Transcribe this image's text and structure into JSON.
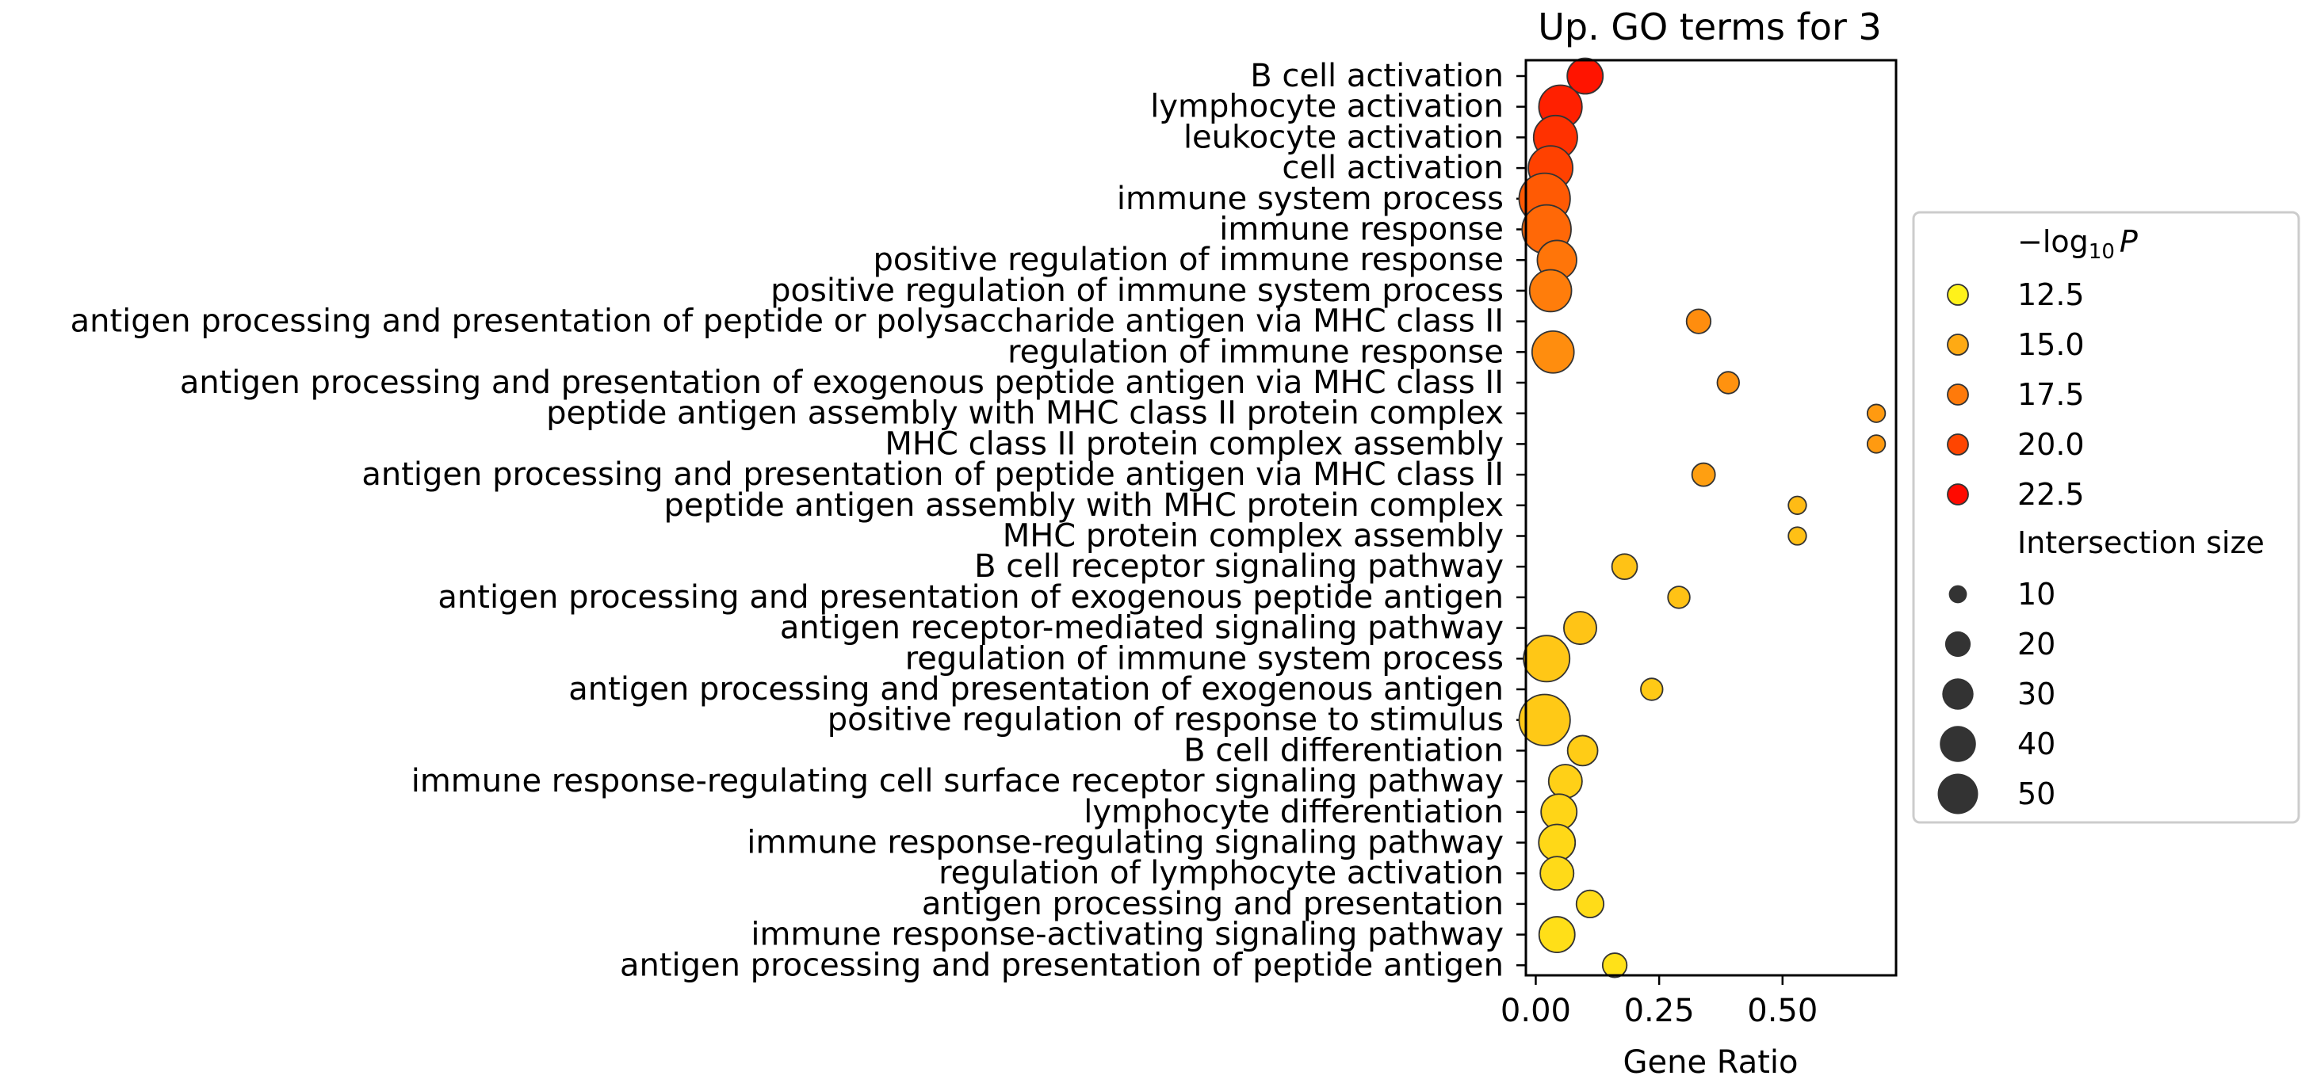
{
  "chart_data": {
    "type": "scatter",
    "title": "Up. GO terms for 3",
    "xlabel": "Gene Ratio",
    "ylabel": "",
    "xlim": [
      -0.02,
      0.73
    ],
    "xticks": [
      0.0,
      0.25,
      0.5
    ],
    "xtick_labels": [
      "0.00",
      "0.25",
      "0.50"
    ],
    "grid": false,
    "legend_position": "right",
    "color_scale": {
      "label_prefix": "−log",
      "label_sub": "10",
      "label_var": "P",
      "min": 11.5,
      "max": 23.5,
      "colors": [
        "#fff21a",
        "#ffaa13",
        "#ff7a0a",
        "#ff4500",
        "#ff0a00"
      ]
    },
    "size_legend_title": "Intersection size",
    "terms": [
      "B cell activation",
      "lymphocyte activation",
      "leukocyte activation",
      "cell activation",
      "immune system process",
      "immune response",
      "positive regulation of immune response",
      "positive regulation of immune system process",
      "antigen processing and presentation of peptide or polysaccharide antigen via MHC class II",
      "regulation of immune response",
      "antigen processing and presentation of exogenous peptide antigen via MHC class II",
      "peptide antigen assembly with MHC class II protein complex",
      "MHC class II protein complex assembly",
      "antigen processing and presentation of peptide antigen via MHC class II",
      "peptide antigen assembly with MHC protein complex",
      "MHC protein complex assembly",
      "B cell receptor signaling pathway",
      "antigen processing and presentation of exogenous peptide antigen",
      "antigen receptor-mediated signaling pathway",
      "regulation of immune system process",
      "antigen processing and presentation of exogenous antigen",
      "positive regulation of response to stimulus",
      "B cell differentiation",
      "immune response-regulating cell surface receptor signaling pathway",
      "lymphocyte differentiation",
      "immune response-regulating signaling pathway",
      "regulation of lymphocyte activation",
      "antigen processing and presentation",
      "immune response-activating signaling pathway",
      "antigen processing and presentation of peptide antigen"
    ],
    "gene_ratio": [
      0.1,
      0.05,
      0.04,
      0.03,
      0.018,
      0.022,
      0.043,
      0.03,
      0.33,
      0.035,
      0.39,
      0.69,
      0.69,
      0.34,
      0.53,
      0.53,
      0.18,
      0.29,
      0.09,
      0.022,
      0.235,
      0.018,
      0.095,
      0.06,
      0.047,
      0.043,
      0.043,
      0.11,
      0.043,
      0.16
    ],
    "neg_log10_p": [
      23.0,
      22.4,
      21.5,
      20.7,
      19.3,
      18.5,
      17.8,
      17.3,
      16.3,
      16.3,
      16.0,
      15.5,
      15.5,
      15.2,
      13.8,
      13.6,
      13.5,
      13.5,
      13.4,
      13.3,
      13.2,
      13.2,
      13.1,
      12.9,
      12.7,
      12.6,
      12.5,
      12.4,
      12.3,
      12.2
    ],
    "intersection_size": [
      24,
      35,
      36,
      37,
      49,
      45,
      29,
      33,
      11,
      33,
      9,
      6,
      6,
      10,
      6,
      6,
      12,
      9,
      20,
      40,
      9,
      49,
      17,
      21,
      24,
      25,
      21,
      14,
      24,
      11
    ],
    "legend_colors": [
      {
        "label": "12.5",
        "color": "#fff21a"
      },
      {
        "label": "15.0",
        "color": "#ffaa13"
      },
      {
        "label": "17.5",
        "color": "#ff7a0a"
      },
      {
        "label": "20.0",
        "color": "#ff4500"
      },
      {
        "label": "22.5",
        "color": "#ff0a00"
      }
    ],
    "legend_sizes": [
      {
        "label": "10",
        "size": 10
      },
      {
        "label": "20",
        "size": 20
      },
      {
        "label": "30",
        "size": 30
      },
      {
        "label": "40",
        "size": 40
      },
      {
        "label": "50",
        "size": 50
      }
    ]
  }
}
